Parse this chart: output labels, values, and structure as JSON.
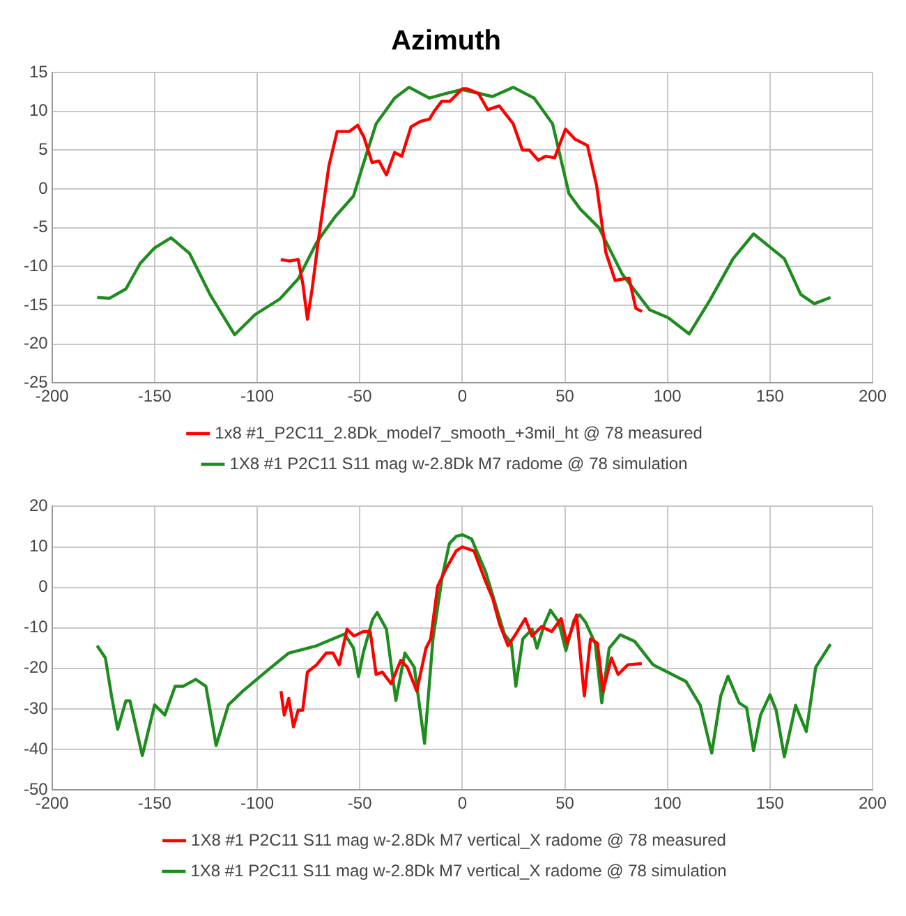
{
  "chart_data": [
    {
      "type": "line",
      "title": "Azimuth",
      "xlim": [
        -200,
        200
      ],
      "xticks": [
        -200,
        -150,
        -100,
        -50,
        0,
        50,
        100,
        150,
        200
      ],
      "ylim": [
        -25,
        15
      ],
      "yticks": [
        -25,
        -20,
        -15,
        -10,
        -5,
        0,
        5,
        10,
        15
      ],
      "grid": true,
      "legend": "bottom",
      "marker": "none",
      "series": [
        {
          "name": "1x8 #1_P2C11_2.8Dk_model7_smooth_+3mil_ht @ 78 measured",
          "color": "#ff0000",
          "x": [
            -88.5,
            -84.4,
            -80,
            -77.7,
            -75.5,
            -73.2,
            -70,
            -65,
            -61,
            -55,
            -51,
            -48,
            -44,
            -40.6,
            -37,
            -33,
            -29.5,
            -25,
            -20.4,
            -16,
            -13.7,
            -10,
            -6,
            0,
            2.3,
            7.9,
            12.4,
            18,
            24.8,
            29.3,
            32.7,
            37,
            40.6,
            45,
            50.3,
            55,
            61,
            65.5,
            70,
            74.5,
            81.3,
            84.6,
            87.6
          ],
          "values": [
            -9.1,
            -9.3,
            -9.1,
            -12.3,
            -16.8,
            -12.9,
            -6.3,
            3,
            7.4,
            7.4,
            8.2,
            6.7,
            3.4,
            3.6,
            1.8,
            4.7,
            4.2,
            8,
            8.7,
            9,
            10,
            11.3,
            11.3,
            12.9,
            12.9,
            12.3,
            10.2,
            10.7,
            8.4,
            5,
            5,
            3.7,
            4.2,
            4,
            7.7,
            6.4,
            5.6,
            0.4,
            -8.2,
            -11.8,
            -11.5,
            -15.4,
            -15.8
          ]
        },
        {
          "name": "1X8 #1 P2C11 S11 mag w-2.8Dk M7 radome @ 78 simulation",
          "color": "#1e8c1e",
          "x": [
            -178,
            -172,
            -164,
            -157,
            -150,
            -142,
            -133,
            -123,
            -111,
            -101,
            -89,
            -80,
            -71,
            -62,
            -53,
            -48.5,
            -42,
            -33,
            -26,
            -16,
            -8,
            0,
            14.7,
            24.8,
            35,
            44,
            52,
            57.5,
            66.6,
            78,
            91.4,
            100.4,
            110.6,
            120.8,
            132,
            142,
            157,
            165,
            171.6,
            179.5
          ],
          "values": [
            -14,
            -14.1,
            -12.9,
            -9.6,
            -7.6,
            -6.3,
            -8.3,
            -13.6,
            -18.8,
            -16.2,
            -14.2,
            -11.6,
            -6.9,
            -3.6,
            -0.9,
            3,
            8.4,
            11.7,
            13.1,
            11.7,
            12.3,
            12.8,
            11.9,
            13.1,
            11.7,
            8.4,
            -0.6,
            -2.6,
            -5,
            -11,
            -15.6,
            -16.6,
            -18.7,
            -14.3,
            -9,
            -5.8,
            -9,
            -13.6,
            -14.8,
            -14
          ]
        }
      ]
    },
    {
      "type": "line",
      "xlim": [
        -200,
        200
      ],
      "xticks": [
        -200,
        -150,
        -100,
        -50,
        0,
        50,
        100,
        150,
        200
      ],
      "ylim": [
        -50,
        20
      ],
      "yticks": [
        -50,
        -40,
        -30,
        -20,
        -10,
        0,
        10,
        20
      ],
      "grid": true,
      "legend": "bottom",
      "marker": "none",
      "series": [
        {
          "name": "1X8 #1 P2C11 S11 mag w-2.8Dk M7 vertical_X radome @ 78 measured",
          "color": "#ff0000",
          "x": [
            -88.4,
            -86.8,
            -84.6,
            -82.3,
            -80,
            -77.8,
            -75.5,
            -71,
            -66.4,
            -63,
            -60,
            -56.2,
            -52.8,
            -48.3,
            -44.9,
            -42,
            -39,
            -34.7,
            -30,
            -26.8,
            -22.2,
            -17.7,
            -15.4,
            -12,
            -7.5,
            -3,
            0,
            5.7,
            11.4,
            14.8,
            18.2,
            22.3,
            26.1,
            30.7,
            34,
            38.6,
            43.6,
            48.2,
            51,
            55.7,
            59.5,
            62.5,
            65.9,
            68.6,
            72.7,
            76,
            80.7,
            87.5
          ],
          "values": [
            -25.6,
            -31.5,
            -27.4,
            -34.4,
            -30.3,
            -30.3,
            -20.9,
            -19.1,
            -16.2,
            -16.2,
            -19.1,
            -10.3,
            -12,
            -10.9,
            -10.9,
            -21.5,
            -20.9,
            -23.8,
            -18,
            -19.7,
            -25.6,
            -15,
            -12.7,
            0.3,
            5,
            9,
            10,
            9,
            1.4,
            -2.7,
            -9.1,
            -14.4,
            -11.5,
            -7.7,
            -12,
            -9.7,
            -10.9,
            -7.7,
            -13.8,
            -6.8,
            -26.8,
            -12.7,
            -13.8,
            -25.6,
            -17.4,
            -21.5,
            -19.1,
            -18.8
          ]
        },
        {
          "name": "1X8 #1 P2C11 S11 mag w-2.8Dk M7 vertical_X radome @ 78 simulation",
          "color": "#1e8c1e",
          "x": [
            -178,
            -174,
            -171,
            -168,
            -164,
            -162,
            -156,
            -150,
            -145,
            -140,
            -136,
            -130,
            -125,
            -120,
            -114,
            -107,
            -96,
            -84.6,
            -71,
            -57.4,
            -53,
            -50.6,
            -48.3,
            -43.8,
            -41.5,
            -37,
            -32.4,
            -28,
            -23.4,
            -18.4,
            -14.3,
            -9.8,
            -6.3,
            -3,
            0,
            4.5,
            11.4,
            17,
            20.5,
            23.9,
            26.1,
            29.5,
            34,
            36.4,
            40,
            43,
            47,
            50.5,
            54.5,
            57.3,
            60,
            64.8,
            68,
            71.6,
            77,
            84,
            93,
            102,
            109,
            116,
            121.6,
            126,
            129.5,
            135,
            138.6,
            142,
            145.4,
            150,
            153,
            157,
            162.5,
            167.7,
            172.3,
            179.5
          ],
          "values": [
            -14.4,
            -17.4,
            -26.8,
            -35,
            -28,
            -28,
            -41.5,
            -29,
            -31.5,
            -24.4,
            -24.4,
            -22.7,
            -24.4,
            -39,
            -29,
            -25.6,
            -20.9,
            -16.2,
            -14.4,
            -11.5,
            -15,
            -22,
            -16.2,
            -8,
            -6.2,
            -10.3,
            -27.9,
            -16.2,
            -19.7,
            -38.5,
            -12.7,
            2.6,
            10.8,
            12.6,
            13,
            12,
            3.8,
            -5.6,
            -11.5,
            -13.8,
            -24.4,
            -12.7,
            -10.3,
            -15,
            -9.1,
            -5.6,
            -8.5,
            -15.6,
            -8,
            -6.8,
            -8.5,
            -13.8,
            -28.5,
            -15,
            -11.7,
            -13.3,
            -19.1,
            -21.4,
            -23.2,
            -29.1,
            -40.9,
            -26.8,
            -21.9,
            -28.5,
            -29.7,
            -40.3,
            -31.5,
            -26.5,
            -30.3,
            -41.8,
            -29.1,
            -35.6,
            -19.7,
            -14
          ]
        }
      ]
    }
  ]
}
